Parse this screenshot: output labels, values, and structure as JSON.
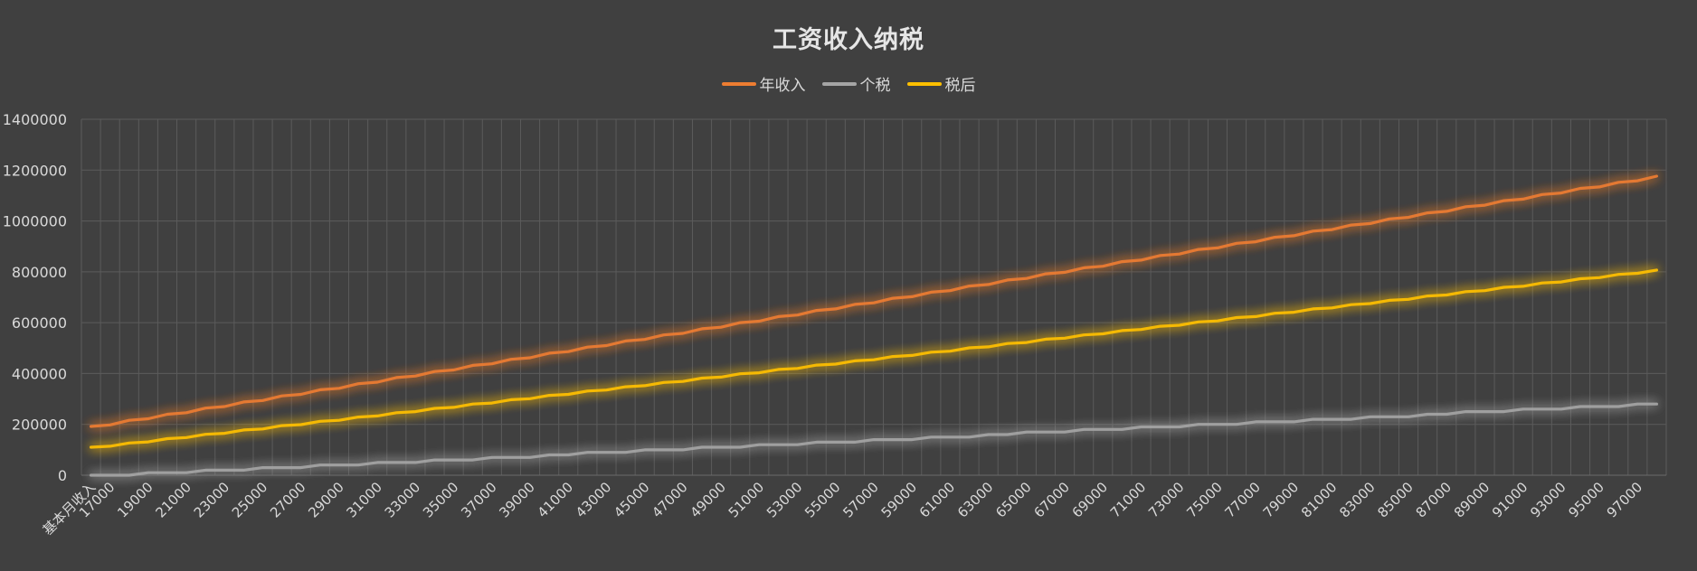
{
  "chart_data": {
    "type": "line",
    "title": "工资收入纳税",
    "xlabel": "",
    "ylabel": "",
    "first_category_label": "基本月收入",
    "x_start": 16000,
    "x_step": 1000,
    "x_end": 98000,
    "x_tick_labels": [
      "17000",
      "19000",
      "21000",
      "23000",
      "25000",
      "27000",
      "29000",
      "31000",
      "33000",
      "35000",
      "37000",
      "39000",
      "41000",
      "43000",
      "45000",
      "47000",
      "49000",
      "51000",
      "53000",
      "55000",
      "57000",
      "59000",
      "61000",
      "63000",
      "65000",
      "67000",
      "69000",
      "71000",
      "73000",
      "75000",
      "77000",
      "79000",
      "81000",
      "83000",
      "85000",
      "87000",
      "89000",
      "91000",
      "93000",
      "95000",
      "97000"
    ],
    "ylim": [
      0,
      1400000
    ],
    "y_ticks": [
      "0",
      "200000",
      "400000",
      "600000",
      "800000",
      "1000000",
      "1200000",
      "1400000"
    ],
    "grid": true,
    "legend_position": "top",
    "series": [
      {
        "name": "年收入",
        "color": "#ED7D31",
        "x": [
          16000,
          98000
        ],
        "y": [
          192000,
          1176000
        ],
        "note_linear": true
      },
      {
        "name": "个税",
        "color": "#A5A5A5",
        "y_at_start": 0,
        "y_at_end": 285000
      },
      {
        "name": "税后",
        "color": "#FFC000",
        "y_at_start": 110000,
        "y_at_end": 810000
      }
    ]
  }
}
